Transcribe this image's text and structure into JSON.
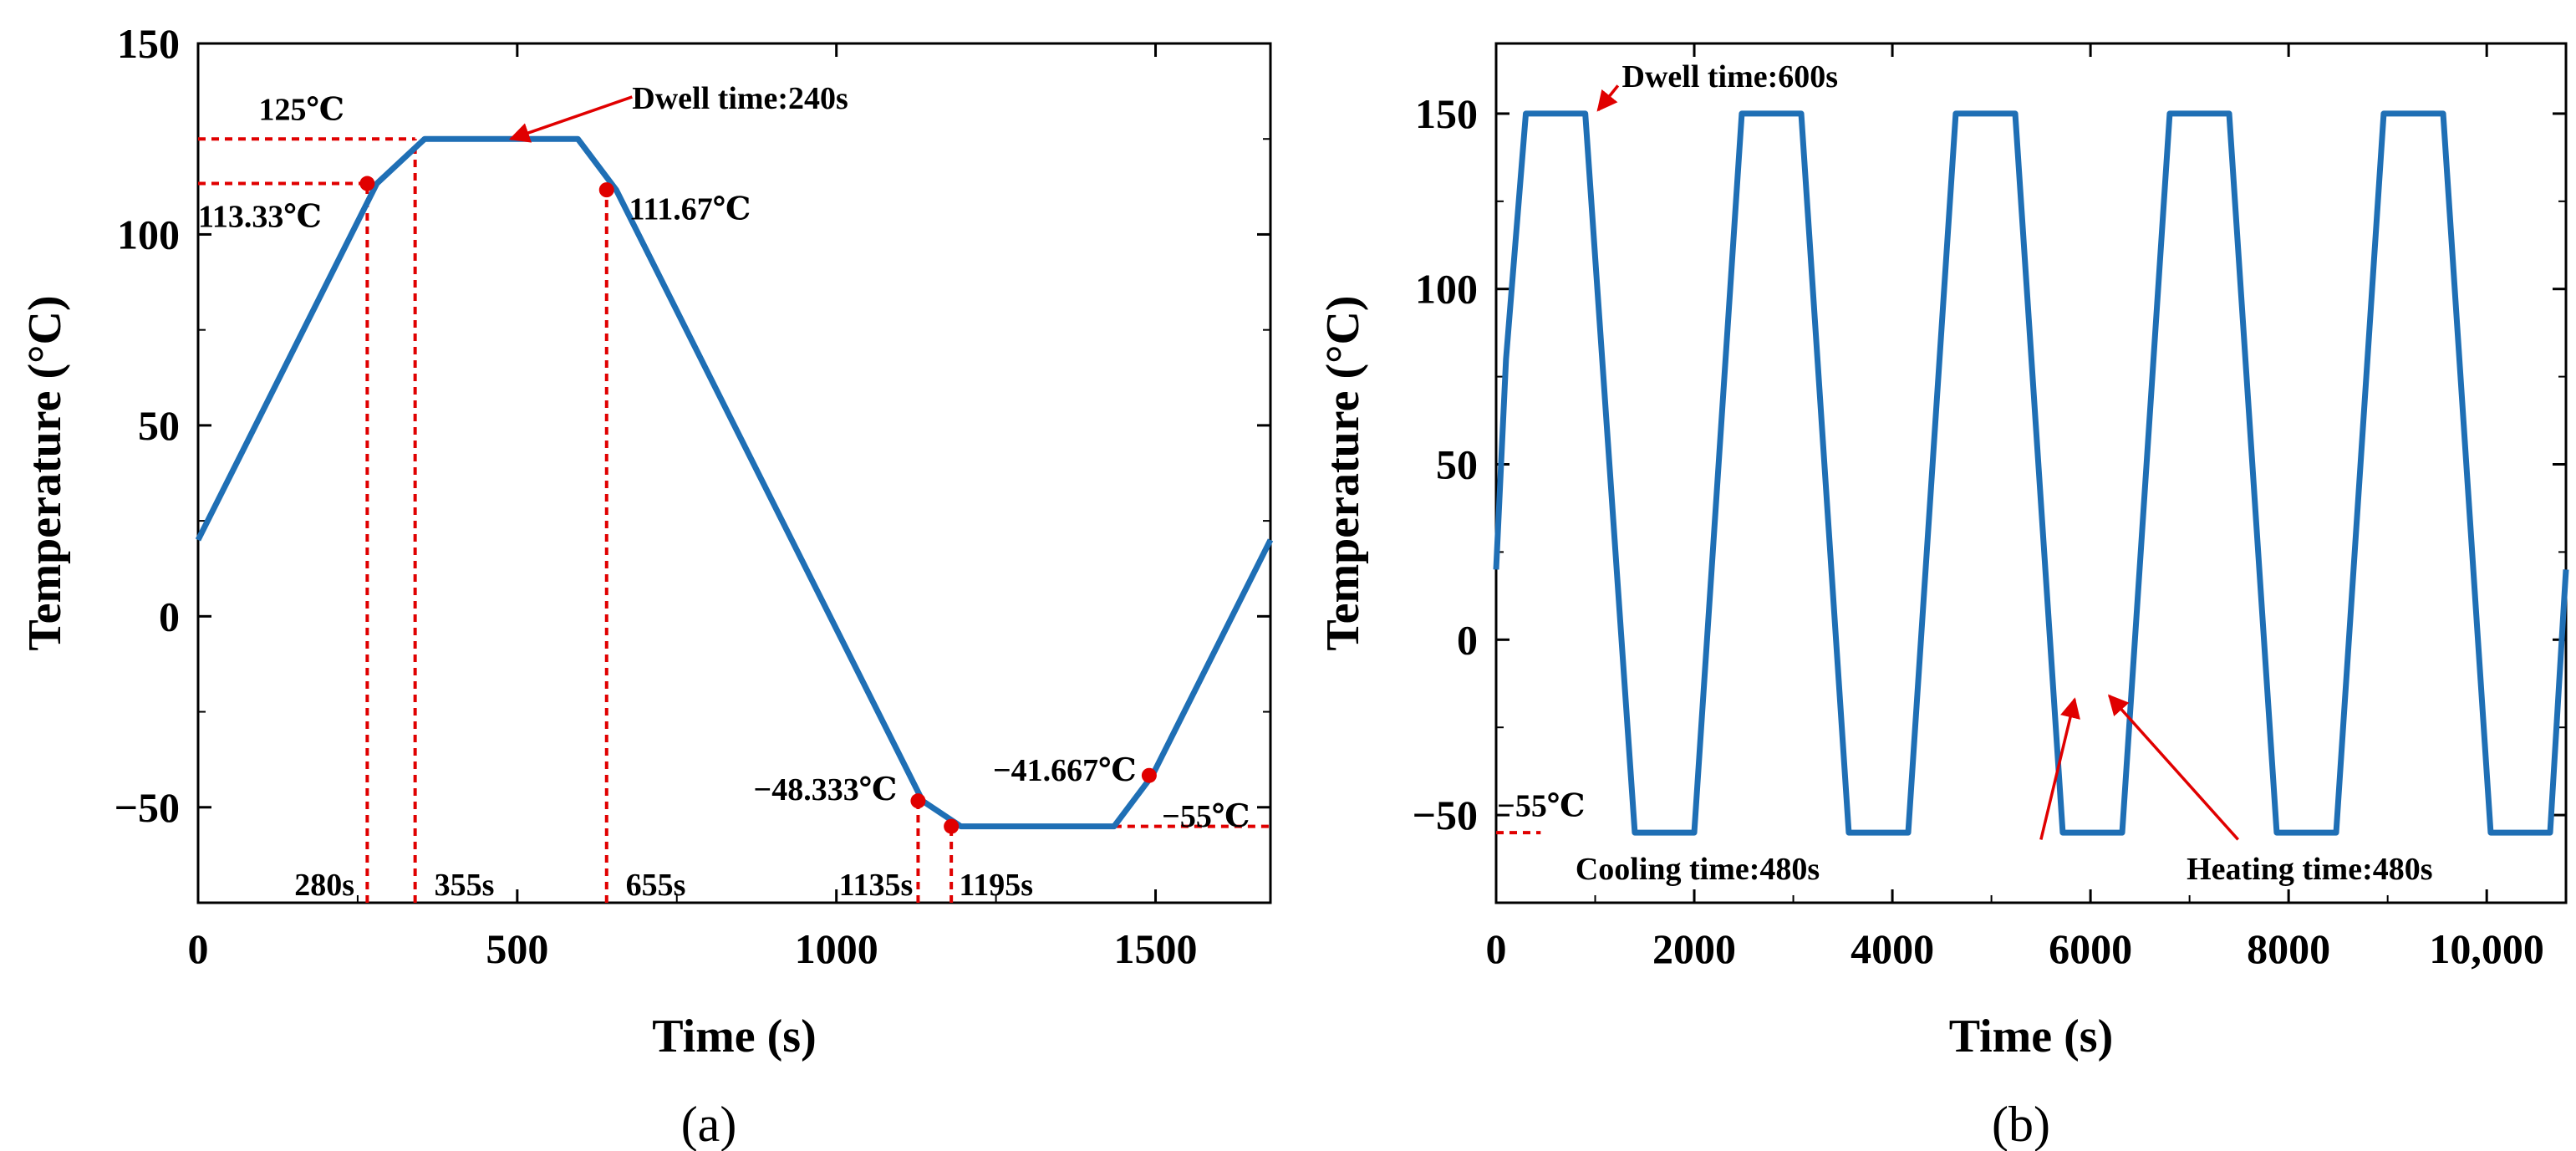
{
  "colors": {
    "series": "#1f6fb5",
    "accent": "#e00000",
    "axis": "#000000"
  },
  "captions": {
    "a": "(a)",
    "b": "(b)"
  },
  "chart_data": [
    {
      "id": "a",
      "type": "line",
      "xlabel": "Time (s)",
      "ylabel": "Temperature (°C)",
      "xlim": [
        0,
        1680
      ],
      "ylim": [
        -75,
        150
      ],
      "xticks": [
        0,
        500,
        1000,
        1500
      ],
      "xtick_labels": [
        "0",
        "500",
        "1000",
        "1500"
      ],
      "yticks": [
        -50,
        0,
        50,
        100,
        150
      ],
      "ytick_labels": [
        "−50",
        "0",
        "50",
        "100",
        "150"
      ],
      "series": [
        {
          "name": "temperature profile",
          "x": [
            0,
            280,
            355,
            595,
            655,
            1135,
            1195,
            1435,
            1495,
            1680
          ],
          "y": [
            20,
            113.33,
            125,
            125,
            111.67,
            -48.333,
            -55,
            -55,
            -41.667,
            20
          ]
        }
      ],
      "points": [
        {
          "x": 265,
          "y": 113.33
        },
        {
          "x": 640,
          "y": 111.67
        },
        {
          "x": 1128,
          "y": -48.333
        },
        {
          "x": 1180,
          "y": -55
        },
        {
          "x": 1490,
          "y": -41.667
        }
      ],
      "guides": [
        {
          "kind": "h",
          "y": 125,
          "x0": 0,
          "x1": 340
        },
        {
          "kind": "h",
          "y": 113.33,
          "x0": 0,
          "x1": 265
        },
        {
          "kind": "h",
          "y": -55,
          "x0": 1435,
          "x1": 1680
        },
        {
          "kind": "v",
          "x": 265,
          "y0": -75,
          "y1": 113.33
        },
        {
          "kind": "v",
          "x": 340,
          "y0": -75,
          "y1": 125
        },
        {
          "kind": "v",
          "x": 640,
          "y0": -75,
          "y1": 111.67
        },
        {
          "kind": "v",
          "x": 1128,
          "y0": -75,
          "y1": -48.333
        },
        {
          "kind": "v",
          "x": 1180,
          "y0": -75,
          "y1": -55
        }
      ],
      "annotations": [
        {
          "text": "125℃",
          "x": 95,
          "y": 133,
          "anchor": "start"
        },
        {
          "text": "113.33℃",
          "x": 0,
          "y": 105,
          "anchor": "start"
        },
        {
          "text": "Dwell time:240s",
          "x": 680,
          "y": 136,
          "anchor": "start"
        },
        {
          "text": "111.67℃",
          "x": 675,
          "y": 107,
          "anchor": "start"
        },
        {
          "text": "−48.333℃",
          "x": 1095,
          "y": -45,
          "anchor": "end"
        },
        {
          "text": "−41.667℃",
          "x": 1470,
          "y": -40,
          "anchor": "end"
        },
        {
          "text": "−55℃",
          "x": 1510,
          "y": -52,
          "anchor": "start"
        },
        {
          "text": "280s",
          "x": 245,
          "y": -70,
          "anchor": "end"
        },
        {
          "text": "355s",
          "x": 370,
          "y": -70,
          "anchor": "start"
        },
        {
          "text": "655s",
          "x": 670,
          "y": -70,
          "anchor": "start"
        },
        {
          "text": "1135s",
          "x": 1120,
          "y": -70,
          "anchor": "end"
        },
        {
          "text": "1195s",
          "x": 1192,
          "y": -70,
          "anchor": "start"
        }
      ],
      "arrows": [
        {
          "x0": 680,
          "y0": 136,
          "x1": 490,
          "y1": 125
        }
      ]
    },
    {
      "id": "b",
      "type": "line",
      "xlabel": "Time (s)",
      "ylabel": "Temperature (°C)",
      "xlim": [
        0,
        10800
      ],
      "ylim": [
        -75,
        170
      ],
      "xticks": [
        0,
        2000,
        4000,
        6000,
        8000,
        10000
      ],
      "xtick_labels": [
        "0",
        "2000",
        "4000",
        "6000",
        "8000",
        "10,000"
      ],
      "yticks": [
        -50,
        0,
        50,
        100,
        150
      ],
      "ytick_labels": [
        "−50",
        "0",
        "50",
        "100",
        "150"
      ],
      "series": [
        {
          "name": "temperature cycles",
          "x": [
            0,
            100,
            300,
            900,
            1400,
            2000,
            2480,
            3080,
            3560,
            4160,
            4640,
            5240,
            5720,
            6320,
            6800,
            7400,
            7880,
            8480,
            8960,
            9560,
            10040,
            10640,
            10800
          ],
          "y": [
            20,
            80,
            150,
            150,
            -55,
            -55,
            150,
            150,
            -55,
            -55,
            150,
            150,
            -55,
            -55,
            150,
            150,
            -55,
            -55,
            150,
            150,
            -55,
            -55,
            20
          ]
        }
      ],
      "guides": [
        {
          "kind": "h",
          "y": -55,
          "x0": 0,
          "x1": 450
        }
      ],
      "annotations": [
        {
          "text": "Dwell time:600s",
          "x": 1270,
          "y": 161,
          "anchor": "start"
        },
        {
          "text": "−55℃",
          "x": 10,
          "y": -47,
          "anchor": "start"
        },
        {
          "text": "Cooling time:480s",
          "x": 800,
          "y": -65,
          "anchor": "start"
        },
        {
          "text": "Heating time:480s",
          "x": 6970,
          "y": -65,
          "anchor": "start"
        }
      ],
      "arrows": [
        {
          "x0": 1230,
          "y0": 158,
          "x1": 1030,
          "y1": 151
        },
        {
          "x0": 5500,
          "y0": -57,
          "x1": 5840,
          "y1": -17
        },
        {
          "x0": 7490,
          "y0": -57,
          "x1": 6190,
          "y1": -16
        }
      ]
    }
  ]
}
